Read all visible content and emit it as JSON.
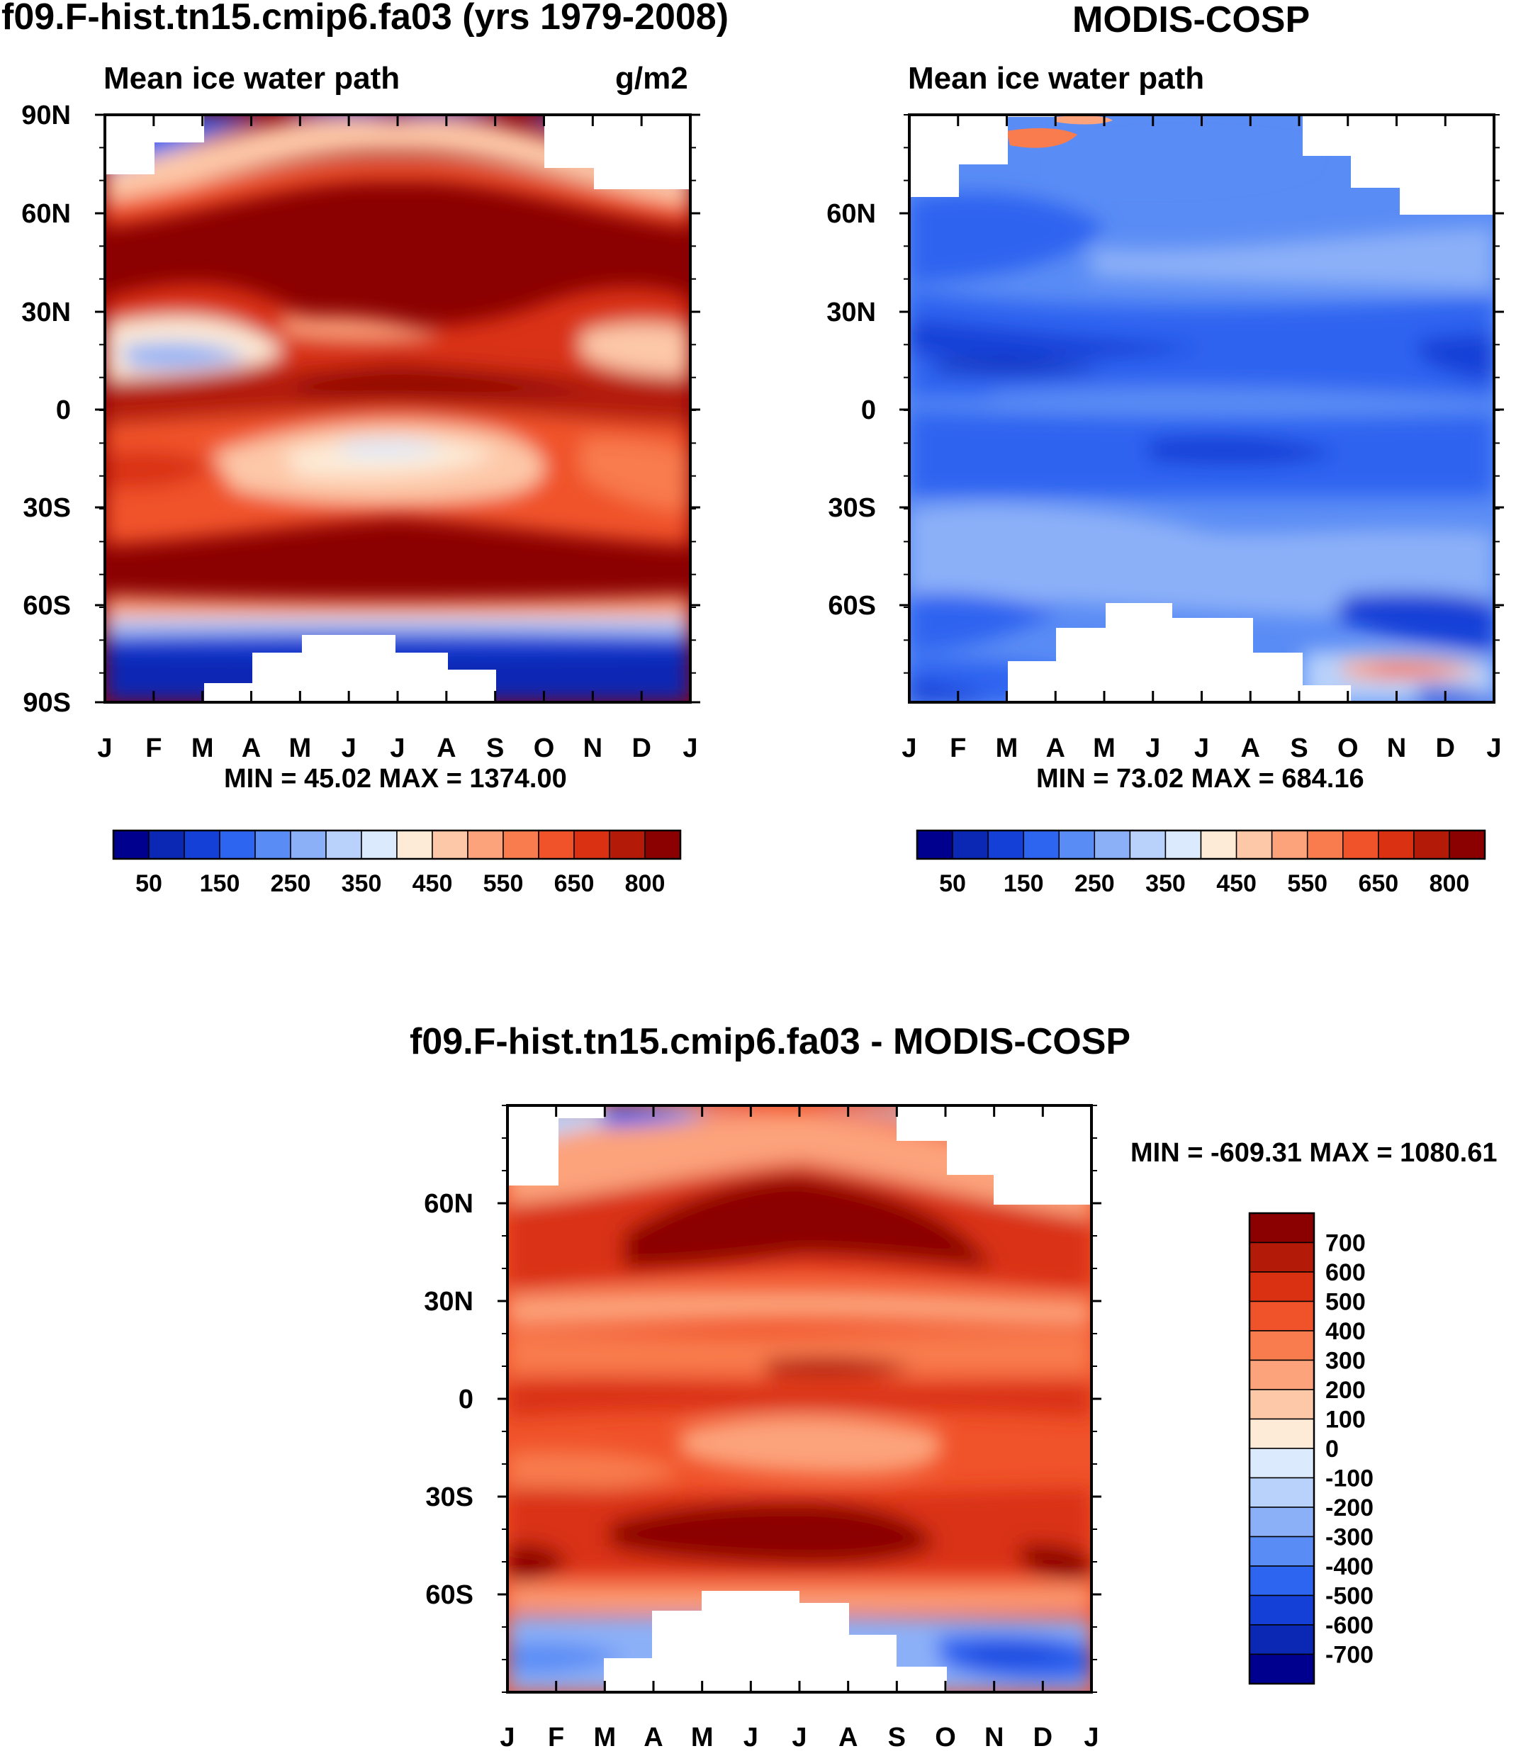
{
  "chart_data": [
    {
      "type": "heatmap",
      "id": "model",
      "title": "f09.F-hist.tn15.cmip6.fa03 (yrs 1979-2008)",
      "subtitle_left": "Mean ice water path",
      "subtitle_right": "g/m2",
      "x_ticks": [
        "J",
        "F",
        "M",
        "A",
        "M",
        "J",
        "J",
        "A",
        "S",
        "O",
        "N",
        "D",
        "J"
      ],
      "y_ticks": [
        "90N",
        "60N",
        "30N",
        "0",
        "30S",
        "60S",
        "90S"
      ],
      "stats": "MIN =  45.02 MAX = 1374.00",
      "colorbar": {
        "colors": [
          "#00008f",
          "#0a28b4",
          "#1440d7",
          "#2d64f0",
          "#5a8cf5",
          "#8cb0f8",
          "#b8d2fb",
          "#dceafd",
          "#fdebd7",
          "#fdc8a8",
          "#fca37c",
          "#f87c4e",
          "#f0522a",
          "#d93112",
          "#b31b08",
          "#8b0000"
        ],
        "labels": [
          "50",
          "150",
          "250",
          "350",
          "450",
          "550",
          "650",
          "800"
        ]
      }
    },
    {
      "type": "heatmap",
      "id": "obs",
      "title": "MODIS-COSP",
      "subtitle_left": "Mean ice water path",
      "x_ticks": [
        "J",
        "F",
        "M",
        "A",
        "M",
        "J",
        "J",
        "A",
        "S",
        "O",
        "N",
        "D",
        "J"
      ],
      "y_ticks": [
        "60N",
        "30N",
        "0",
        "30S",
        "60S"
      ],
      "stats": "MIN =  73.02 MAX = 684.16",
      "colorbar": {
        "colors": [
          "#00008f",
          "#0a28b4",
          "#1440d7",
          "#2d64f0",
          "#5a8cf5",
          "#8cb0f8",
          "#b8d2fb",
          "#dceafd",
          "#fdebd7",
          "#fdc8a8",
          "#fca37c",
          "#f87c4e",
          "#f0522a",
          "#d93112",
          "#b31b08",
          "#8b0000"
        ],
        "labels": [
          "50",
          "150",
          "250",
          "350",
          "450",
          "550",
          "650",
          "800"
        ]
      }
    },
    {
      "type": "heatmap",
      "id": "diff",
      "title": "f09.F-hist.tn15.cmip6.fa03 - MODIS-COSP",
      "x_ticks": [
        "J",
        "F",
        "M",
        "A",
        "M",
        "J",
        "J",
        "A",
        "S",
        "O",
        "N",
        "D",
        "J"
      ],
      "y_ticks": [
        "60N",
        "30N",
        "0",
        "30S",
        "60S"
      ],
      "stats": "MIN = -609.31 MAX = 1080.61",
      "colorbar": {
        "colors": [
          "#8b0000",
          "#b31b08",
          "#d93112",
          "#f0522a",
          "#f87c4e",
          "#fca37c",
          "#fdc8a8",
          "#fdebd7",
          "#dceafd",
          "#b8d2fb",
          "#8cb0f8",
          "#5a8cf5",
          "#2d64f0",
          "#1440d7",
          "#0a28b4",
          "#00008f"
        ],
        "labels": [
          "700",
          "600",
          "500",
          "400",
          "300",
          "200",
          "100",
          "0",
          "-100",
          "-200",
          "-300",
          "-400",
          "-500",
          "-600",
          "-700"
        ]
      }
    }
  ]
}
